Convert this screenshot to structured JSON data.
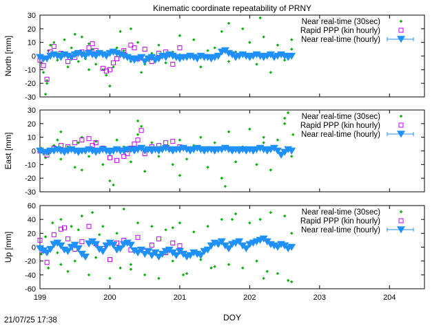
{
  "chart_data": [
    {
      "type": "scatter",
      "title": "Kinematic coordinate repeatability of PRNY",
      "ylabel": "North [mm]",
      "xlabel": "",
      "xlim": [
        199,
        204.5
      ],
      "ylim": [
        -30,
        30
      ],
      "yticks": [
        -30,
        -20,
        -10,
        0,
        10,
        20,
        30
      ],
      "xticks": [
        199,
        200,
        201,
        202,
        203,
        204
      ],
      "show_xtick_labels": false,
      "legend_position": "top-right",
      "series": [
        {
          "name": "Near real-time (30sec)",
          "marker": "diamond",
          "color": "#00b000",
          "x": [
            199.02,
            199.05,
            199.08,
            199.1,
            199.12,
            199.15,
            199.2,
            199.25,
            199.3,
            199.35,
            199.4,
            199.45,
            199.5,
            199.55,
            199.6,
            199.65,
            199.7,
            199.75,
            199.8,
            199.85,
            199.9,
            199.95,
            200.0,
            200.05,
            200.1,
            200.15,
            200.2,
            200.3,
            200.4,
            200.5,
            200.6,
            200.7,
            200.8,
            200.9,
            201.0,
            201.1,
            201.2,
            201.3,
            201.4,
            201.5,
            201.6,
            201.7,
            201.8,
            201.9,
            202.0,
            202.1,
            202.2,
            202.3,
            202.4,
            202.5,
            202.6,
            199.5,
            199.7,
            200.3,
            200.45,
            201.0,
            201.7,
            202.15,
            202.6,
            199.1
          ],
          "y": [
            -5,
            -12,
            -28,
            -18,
            4,
            8,
            10,
            -3,
            2,
            12,
            -8,
            6,
            3,
            -4,
            14,
            -2,
            9,
            5,
            -6,
            3,
            -10,
            -14,
            -22,
            -8,
            6,
            18,
            4,
            -4,
            10,
            -6,
            2,
            8,
            -5,
            3,
            1,
            -2,
            12,
            -8,
            4,
            6,
            18,
            -4,
            3,
            20,
            10,
            -6,
            14,
            -12,
            8,
            -3,
            5,
            16,
            -10,
            20,
            -12,
            15,
            24,
            28,
            12,
            -20
          ]
        },
        {
          "name": "Rapid PPP (kin hourly)",
          "marker": "open-square",
          "color": "#c000ff",
          "x": [
            199.0,
            199.05,
            199.1,
            199.15,
            199.2,
            199.3,
            199.4,
            199.5,
            199.6,
            199.7,
            199.75,
            199.8,
            199.9,
            199.95,
            200.0,
            200.05,
            200.1,
            200.2,
            200.3,
            200.35,
            200.4,
            200.5,
            200.6,
            200.7,
            200.8,
            200.9,
            201.0
          ],
          "y": [
            -3,
            -7,
            -17,
            3,
            7,
            2,
            -4,
            -1,
            3,
            6,
            9,
            4,
            -9,
            -11,
            -10,
            -5,
            -2,
            4,
            8,
            6,
            -2,
            5,
            -4,
            2,
            3,
            -6,
            6
          ]
        },
        {
          "name": "Near real-time (hourly)",
          "marker": "triangle-down-errorbar",
          "color": "#1e90ff",
          "x": [
            199.0,
            199.05,
            199.1,
            199.15,
            199.2,
            199.25,
            199.3,
            199.35,
            199.4,
            199.45,
            199.5,
            199.55,
            199.6,
            199.65,
            199.7,
            199.75,
            199.8,
            199.85,
            199.9,
            199.95,
            200.0,
            200.05,
            200.1,
            200.15,
            200.2,
            200.25,
            200.3,
            200.35,
            200.4,
            200.45,
            200.5,
            200.55,
            200.6,
            200.65,
            200.7,
            200.75,
            200.8,
            200.85,
            200.9,
            200.95,
            201.0,
            201.05,
            201.1,
            201.15,
            201.2,
            201.25,
            201.3,
            201.35,
            201.4,
            201.45,
            201.5,
            201.55,
            201.6,
            201.65,
            201.7,
            201.75,
            201.8,
            201.85,
            201.9,
            201.95,
            202.0,
            202.05,
            202.1,
            202.15,
            202.2,
            202.25,
            202.3,
            202.35,
            202.4,
            202.45,
            202.5,
            202.55,
            202.6
          ],
          "y": [
            -1,
            -2,
            -2,
            0,
            1,
            0,
            -1,
            1,
            0,
            -1,
            1,
            2,
            1,
            0,
            2,
            1,
            0,
            2,
            1,
            0,
            2,
            3,
            2,
            1,
            0,
            -1,
            -2,
            -3,
            -2,
            -1,
            -4,
            -2,
            -1,
            -3,
            -2,
            0,
            -1,
            1,
            0,
            -1,
            -2,
            -1,
            -1,
            0,
            -1,
            -2,
            0,
            -1,
            -1,
            -2,
            -1,
            0,
            3,
            4,
            2,
            1,
            -1,
            0,
            1,
            0,
            -1,
            0,
            1,
            0,
            -1,
            0,
            1,
            -1,
            0,
            1,
            0,
            -1,
            0
          ]
        }
      ]
    },
    {
      "type": "scatter",
      "title": "",
      "ylabel": "East [mm]",
      "xlabel": "",
      "xlim": [
        199,
        204.5
      ],
      "ylim": [
        -30,
        30
      ],
      "yticks": [
        -30,
        -20,
        -10,
        0,
        10,
        20,
        30
      ],
      "xticks": [
        199,
        200,
        201,
        202,
        203,
        204
      ],
      "show_xtick_labels": false,
      "legend_position": "top-right",
      "series": [
        {
          "name": "Near real-time (30sec)",
          "marker": "diamond",
          "color": "#00b000",
          "x": [
            199.02,
            199.08,
            199.12,
            199.2,
            199.25,
            199.3,
            199.4,
            199.5,
            199.55,
            199.6,
            199.7,
            199.8,
            199.9,
            200.0,
            200.05,
            200.1,
            200.2,
            200.3,
            200.4,
            200.45,
            200.5,
            200.6,
            200.7,
            200.8,
            200.9,
            201.0,
            201.1,
            201.2,
            201.3,
            201.4,
            201.5,
            201.6,
            201.65,
            201.7,
            201.8,
            201.9,
            202.0,
            202.1,
            202.2,
            202.3,
            202.4,
            202.5,
            202.55,
            202.6,
            202.62,
            199.3,
            199.6,
            200.4,
            201.0,
            201.6,
            202.2,
            202.5
          ],
          "y": [
            2,
            -5,
            -2,
            4,
            8,
            -6,
            3,
            -12,
            6,
            10,
            -4,
            7,
            -10,
            -22,
            -25,
            8,
            3,
            -8,
            12,
            18,
            -15,
            6,
            -4,
            2,
            -10,
            8,
            -6,
            4,
            10,
            -12,
            6,
            -20,
            -26,
            14,
            -8,
            3,
            16,
            -10,
            6,
            -14,
            8,
            20,
            28,
            -4,
            12,
            14,
            -14,
            22,
            -18,
            -20,
            10,
            24
          ]
        },
        {
          "name": "Rapid PPP (kin hourly)",
          "marker": "open-square",
          "color": "#c000ff",
          "x": [
            199.0,
            199.1,
            199.2,
            199.3,
            199.4,
            199.5,
            199.6,
            199.7,
            199.75,
            199.8,
            199.9,
            200.0,
            200.1,
            200.2,
            200.25,
            200.3,
            200.35,
            200.4,
            200.45,
            200.5,
            200.6,
            200.7,
            200.8,
            200.9,
            201.0
          ],
          "y": [
            0,
            -3,
            2,
            4,
            3,
            6,
            8,
            9,
            4,
            6,
            2,
            -5,
            -7,
            -4,
            -2,
            2,
            5,
            8,
            15,
            -2,
            3,
            4,
            6,
            7,
            3
          ]
        },
        {
          "name": "Near real-time (hourly)",
          "marker": "triangle-down-errorbar",
          "color": "#1e90ff",
          "x": [
            199.0,
            199.05,
            199.1,
            199.15,
            199.2,
            199.25,
            199.3,
            199.35,
            199.4,
            199.45,
            199.5,
            199.55,
            199.6,
            199.65,
            199.7,
            199.75,
            199.8,
            199.85,
            199.9,
            199.95,
            200.0,
            200.05,
            200.1,
            200.15,
            200.2,
            200.25,
            200.3,
            200.35,
            200.4,
            200.45,
            200.5,
            200.55,
            200.6,
            200.65,
            200.7,
            200.75,
            200.8,
            200.85,
            200.9,
            200.95,
            201.0,
            201.05,
            201.1,
            201.15,
            201.2,
            201.25,
            201.3,
            201.35,
            201.4,
            201.45,
            201.5,
            201.55,
            201.6,
            201.65,
            201.7,
            201.75,
            201.8,
            201.85,
            201.9,
            201.95,
            202.0,
            202.05,
            202.1,
            202.15,
            202.2,
            202.25,
            202.3,
            202.35,
            202.4,
            202.45,
            202.5,
            202.55,
            202.6
          ],
          "y": [
            0,
            -1,
            -1,
            0,
            0,
            1,
            0,
            -1,
            0,
            1,
            0,
            -1,
            0,
            0,
            1,
            0,
            -1,
            0,
            1,
            0,
            -1,
            0,
            1,
            0,
            0,
            1,
            1,
            0,
            1,
            2,
            0,
            1,
            0,
            1,
            0,
            1,
            2,
            1,
            0,
            1,
            1,
            2,
            1,
            0,
            1,
            2,
            1,
            0,
            1,
            1,
            0,
            1,
            1,
            2,
            1,
            0,
            1,
            0,
            1,
            0,
            1,
            0,
            1,
            2,
            1,
            0,
            1,
            2,
            0,
            -3,
            -1,
            1,
            0
          ]
        }
      ]
    },
    {
      "type": "scatter",
      "title": "",
      "ylabel": "Up [mm]",
      "xlabel": "DOY",
      "xlim": [
        199,
        204.5
      ],
      "ylim": [
        -60,
        60
      ],
      "yticks": [
        -60,
        -40,
        -20,
        0,
        20,
        40,
        60
      ],
      "xticks": [
        199,
        200,
        201,
        202,
        203,
        204
      ],
      "show_xtick_labels": true,
      "legend_position": "top-right",
      "series": [
        {
          "name": "Near real-time (30sec)",
          "marker": "diamond",
          "color": "#00b000",
          "x": [
            199.02,
            199.08,
            199.12,
            199.18,
            199.25,
            199.3,
            199.4,
            199.45,
            199.5,
            199.6,
            199.7,
            199.75,
            199.8,
            199.9,
            200.0,
            200.1,
            200.15,
            200.2,
            200.3,
            200.4,
            200.5,
            200.6,
            200.7,
            200.8,
            200.9,
            201.0,
            201.1,
            201.2,
            201.3,
            201.4,
            201.5,
            201.6,
            201.7,
            201.8,
            201.9,
            202.0,
            202.1,
            202.15,
            202.2,
            202.3,
            202.4,
            202.5,
            202.55,
            202.6,
            199.3,
            199.85,
            200.3,
            200.9,
            201.75,
            202.25,
            202.6,
            201.05,
            201.45,
            199.55
          ],
          "y": [
            -10,
            15,
            -30,
            35,
            -8,
            40,
            -35,
            30,
            -20,
            45,
            -40,
            50,
            -15,
            30,
            -45,
            20,
            -30,
            55,
            -25,
            35,
            -40,
            30,
            -45,
            25,
            -20,
            35,
            -38,
            22,
            -18,
            30,
            -28,
            40,
            -25,
            48,
            -30,
            35,
            -20,
            40,
            -45,
            50,
            -38,
            45,
            -48,
            20,
            -25,
            18,
            -32,
            28,
            40,
            -35,
            -50,
            -40,
            -30,
            25
          ]
        },
        {
          "name": "Rapid PPP (kin hourly)",
          "marker": "open-square",
          "color": "#c000ff",
          "x": [
            199.0,
            199.05,
            199.1,
            199.2,
            199.3,
            199.35,
            199.4,
            199.5,
            199.6,
            199.7,
            199.8,
            199.9,
            200.0,
            200.1,
            200.2,
            200.3,
            200.4,
            200.5,
            200.6,
            200.7,
            200.8,
            200.9,
            201.0
          ],
          "y": [
            10,
            -5,
            -22,
            18,
            26,
            28,
            12,
            -3,
            8,
            30,
            5,
            -2,
            -18,
            6,
            10,
            -4,
            14,
            -6,
            3,
            12,
            -8,
            6,
            2
          ]
        },
        {
          "name": "Near real-time (hourly)",
          "marker": "triangle-down-errorbar",
          "color": "#1e90ff",
          "x": [
            199.0,
            199.05,
            199.1,
            199.15,
            199.2,
            199.25,
            199.3,
            199.35,
            199.4,
            199.45,
            199.5,
            199.55,
            199.6,
            199.65,
            199.7,
            199.75,
            199.8,
            199.85,
            199.9,
            199.95,
            200.0,
            200.05,
            200.1,
            200.15,
            200.2,
            200.25,
            200.3,
            200.35,
            200.4,
            200.45,
            200.5,
            200.55,
            200.6,
            200.65,
            200.7,
            200.75,
            200.8,
            200.85,
            200.9,
            200.95,
            201.0,
            201.05,
            201.1,
            201.15,
            201.2,
            201.25,
            201.3,
            201.35,
            201.4,
            201.45,
            201.5,
            201.55,
            201.6,
            201.65,
            201.7,
            201.75,
            201.8,
            201.85,
            201.9,
            201.95,
            202.0,
            202.05,
            202.1,
            202.15,
            202.2,
            202.25,
            202.3,
            202.35,
            202.4,
            202.45,
            202.5,
            202.55,
            202.6
          ],
          "y": [
            -2,
            -5,
            -8,
            -3,
            4,
            6,
            2,
            -4,
            -6,
            0,
            3,
            -2,
            -10,
            -14,
            5,
            8,
            4,
            -3,
            -6,
            2,
            6,
            3,
            -4,
            -2,
            4,
            6,
            3,
            -5,
            -8,
            -4,
            -10,
            -6,
            -12,
            -8,
            -14,
            -10,
            -6,
            -4,
            -8,
            -12,
            -6,
            -10,
            -14,
            -12,
            -8,
            -10,
            -12,
            -6,
            -4,
            2,
            6,
            4,
            8,
            2,
            -2,
            4,
            6,
            8,
            2,
            -2,
            4,
            6,
            8,
            10,
            12,
            8,
            4,
            2,
            0,
            4,
            2,
            -2,
            0
          ]
        }
      ]
    }
  ],
  "footer": {
    "timestamp": "21/07/25 17:38"
  }
}
